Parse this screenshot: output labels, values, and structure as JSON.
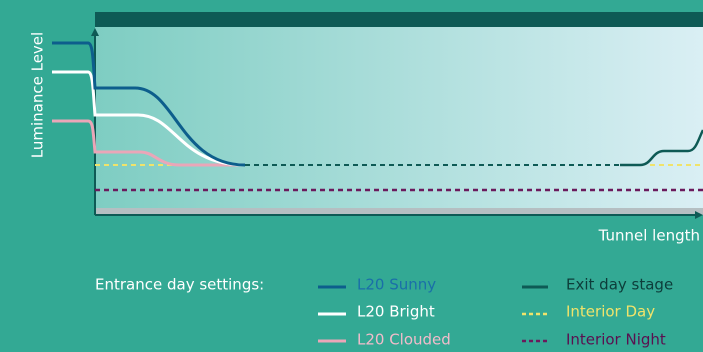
{
  "axes": {
    "y_label": "Luminance Level",
    "x_label": "Tunnel length"
  },
  "legend": {
    "title": "Entrance day settings:",
    "items": [
      "L20 Sunny",
      "L20 Bright",
      "L20 Clouded",
      "Exit day stage",
      "Interior Day",
      "Interior Night"
    ]
  }
}
